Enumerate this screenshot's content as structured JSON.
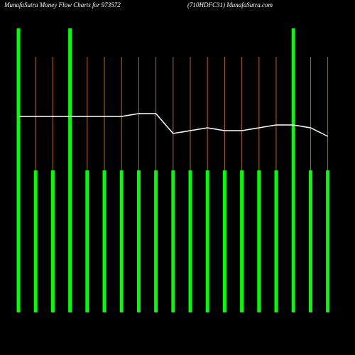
{
  "chart_data": {
    "type": "bar",
    "title": "MunafaSutra  Money Flow  Charts for 973572",
    "subtitle": "(710HDFC31) MunafaSutra.com",
    "categories": [
      null,
      null,
      null,
      null,
      null,
      null,
      null,
      null,
      null,
      null,
      null,
      null,
      null,
      null,
      null,
      null,
      null,
      null,
      null
    ],
    "values": [
      100,
      50,
      50,
      100,
      50,
      50,
      50,
      50,
      50,
      50,
      50,
      50,
      50,
      50,
      50,
      50,
      100,
      50,
      50
    ],
    "color": "#00ff00",
    "line_values": [
      69,
      69,
      69,
      69,
      69,
      69,
      69,
      70,
      70,
      63,
      64,
      65,
      64,
      64,
      65,
      66,
      66,
      65,
      62
    ],
    "line_color": "#ffffff",
    "guide_color": "#b5651d",
    "ylim": [
      0,
      100
    ]
  }
}
